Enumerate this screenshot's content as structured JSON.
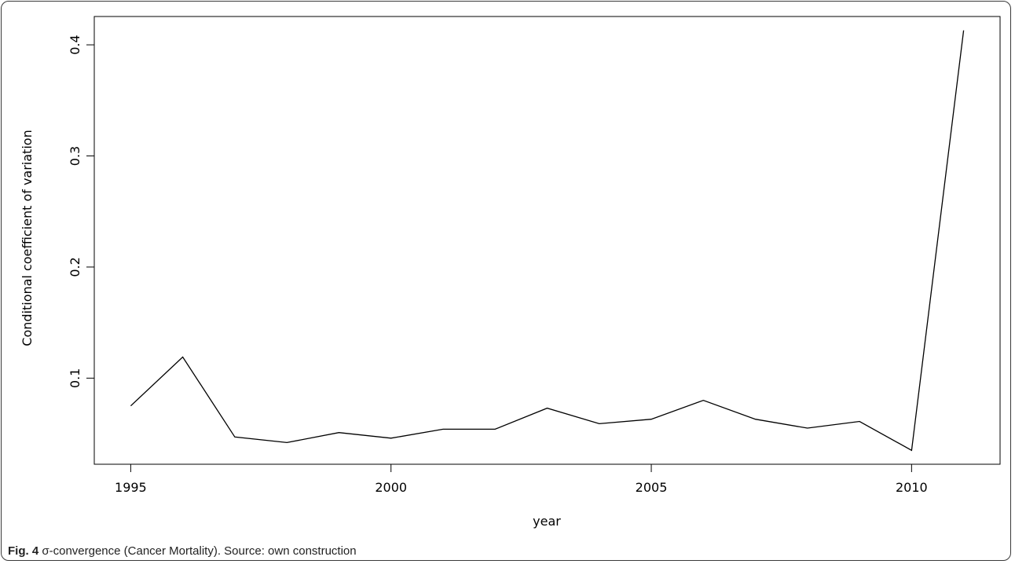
{
  "figure": {
    "label": "Fig. 4",
    "caption": "σ-convergence (Cancer Mortality). Source: own construction"
  },
  "chart_data": {
    "type": "line",
    "xlabel": "year",
    "ylabel": "Conditional coefficient of variation",
    "x_ticks": [
      1995,
      2000,
      2005,
      2010
    ],
    "y_ticks": [
      0.1,
      0.2,
      0.3,
      0.4
    ],
    "x_tick_labels": [
      "1995",
      "2000",
      "2005",
      "2010"
    ],
    "y_tick_labels": [
      "0.1",
      "0.2",
      "0.3",
      "0.4"
    ],
    "xlim": [
      1994.3,
      2011.7
    ],
    "ylim": [
      0.0225,
      0.4255
    ],
    "grid": false,
    "series": [
      {
        "x": [
          1995,
          1996,
          1997,
          1998,
          1999,
          2000,
          2001,
          2002,
          2003,
          2004,
          2005,
          2006,
          2007,
          2008,
          2009,
          2010,
          2011
        ],
        "y": [
          0.075,
          0.119,
          0.047,
          0.042,
          0.051,
          0.046,
          0.054,
          0.054,
          0.073,
          0.059,
          0.063,
          0.08,
          0.063,
          0.055,
          0.061,
          0.035,
          0.413
        ]
      }
    ]
  }
}
